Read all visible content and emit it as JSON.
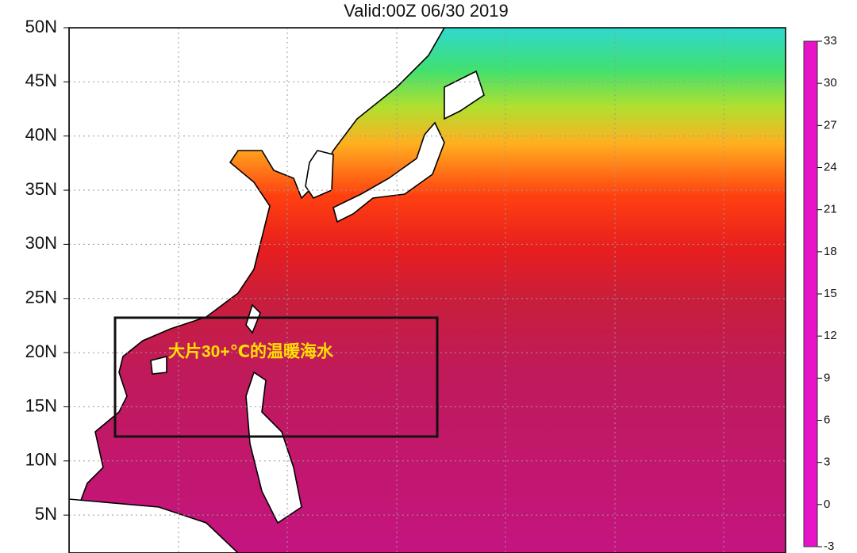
{
  "map": {
    "title": "Valid:00Z 06/30 2019",
    "lat_ticks": [
      {
        "value": 50,
        "label": "50N"
      },
      {
        "value": 45,
        "label": "45N"
      },
      {
        "value": 40,
        "label": "40N"
      },
      {
        "value": 35,
        "label": "35N"
      },
      {
        "value": 30,
        "label": "30N"
      },
      {
        "value": 25,
        "label": "25N"
      },
      {
        "value": 20,
        "label": "20N"
      },
      {
        "value": 15,
        "label": "15N"
      },
      {
        "value": 10,
        "label": "10N"
      },
      {
        "value": 5,
        "label": "5N"
      }
    ],
    "colorbar": {
      "ticks": [
        33,
        30,
        27,
        24,
        21,
        18,
        15,
        12,
        9,
        6,
        3,
        0,
        -3
      ],
      "colors": [
        "#e812c8",
        "#b01e50",
        "#c8141e",
        "#ff1e00",
        "#ff7800",
        "#ffaa00",
        "#f0e600",
        "#a0e628",
        "#28d228",
        "#1ee6e6",
        "#1e8cff",
        "#1e1eb4",
        "#787896"
      ]
    }
  },
  "annotation": {
    "text": "大片30+℃的温暖海水"
  }
}
